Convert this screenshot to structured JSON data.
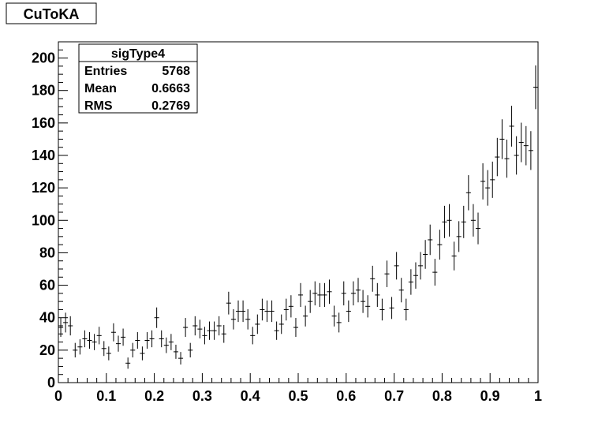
{
  "title": "CuToKA",
  "stats": {
    "name": "sigType4",
    "rows": [
      {
        "label": "Entries",
        "value": "5768"
      },
      {
        "label": "Mean",
        "value": "0.6663"
      },
      {
        "label": "RMS",
        "value": "0.2769"
      }
    ]
  },
  "chart_data": {
    "type": "histogram",
    "xlim": [
      0,
      1
    ],
    "ylim": [
      0,
      210
    ],
    "x_ticks": [
      "0",
      "0.1",
      "0.2",
      "0.3",
      "0.4",
      "0.5",
      "0.6",
      "0.7",
      "0.8",
      "0.9",
      "1"
    ],
    "y_ticks": [
      "0",
      "20",
      "40",
      "60",
      "80",
      "100",
      "120",
      "140",
      "160",
      "180",
      "200"
    ],
    "bins": 100,
    "values": [
      34,
      37,
      35,
      20,
      22,
      27,
      26,
      25,
      29,
      21,
      18,
      31,
      24,
      28,
      12,
      20,
      26,
      18,
      26,
      27,
      40,
      27,
      23,
      25,
      19,
      15,
      34,
      20,
      35,
      33,
      29,
      32,
      32,
      35,
      30,
      49,
      39,
      44,
      44,
      39,
      29,
      36,
      45,
      44,
      44,
      32,
      36,
      45,
      47,
      34,
      54,
      41,
      50,
      55,
      54,
      54,
      56,
      41,
      37,
      55,
      44,
      55,
      57,
      50,
      47,
      64,
      54,
      45,
      67,
      46,
      72,
      57,
      45,
      62,
      66,
      72,
      79,
      88,
      68,
      85,
      99,
      100,
      78,
      90,
      99,
      117,
      100,
      95,
      124,
      120,
      125,
      139,
      150,
      138,
      158,
      140,
      148,
      146,
      143,
      182
    ]
  },
  "colors": {
    "line": "#000000",
    "background": "#ffffff"
  }
}
